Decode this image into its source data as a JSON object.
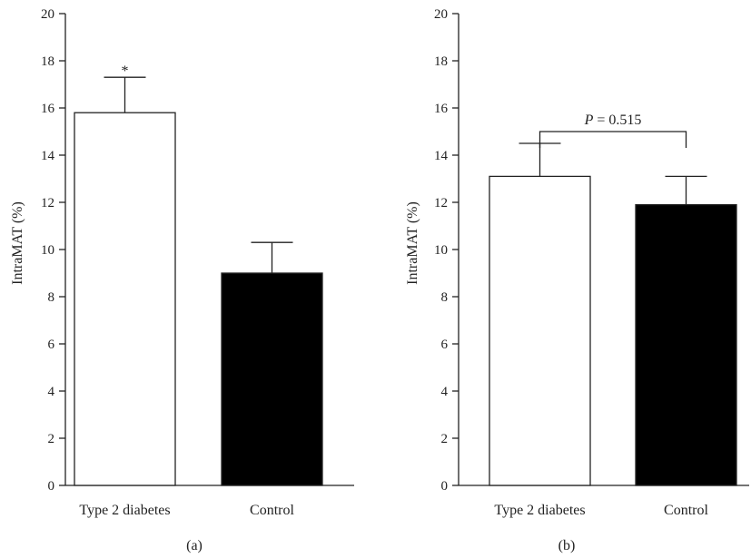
{
  "chart_data": [
    {
      "type": "bar",
      "panel_label": "(a)",
      "categories": [
        "Type 2 diabetes",
        "Control"
      ],
      "values": [
        15.8,
        9.0
      ],
      "errors": [
        1.5,
        1.3
      ],
      "bar_colors": [
        "#ffffff",
        "#000000"
      ],
      "ylabel": "IntraMAT (%)",
      "ylim": [
        0,
        20
      ],
      "yticks": [
        "0",
        "2",
        "4",
        "6",
        "8",
        "10",
        "12",
        "14",
        "16",
        "18",
        "20"
      ],
      "annotation": {
        "text": "*",
        "category": "Type 2 diabetes"
      }
    },
    {
      "type": "bar",
      "panel_label": "(b)",
      "categories": [
        "Type 2 diabetes",
        "Control"
      ],
      "values": [
        13.1,
        11.9
      ],
      "errors": [
        1.4,
        1.2
      ],
      "bar_colors": [
        "#ffffff",
        "#000000"
      ],
      "ylabel": "IntraMAT (%)",
      "ylim": [
        0,
        20
      ],
      "yticks": [
        "0",
        "2",
        "4",
        "6",
        "8",
        "10",
        "12",
        "14",
        "16",
        "18",
        "20"
      ],
      "annotation": {
        "prefix": "P",
        "text": " = 0.515",
        "bracket_y": 15.0
      }
    }
  ]
}
